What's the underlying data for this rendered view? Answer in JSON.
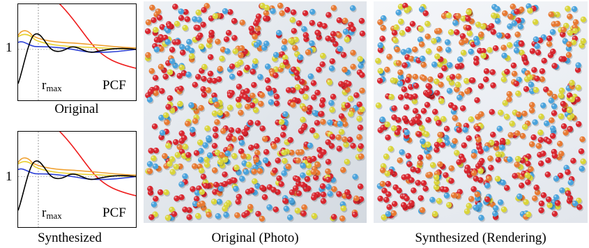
{
  "figure": {
    "plot_top": {
      "tick_one": "1",
      "rmax_main": "r",
      "rmax_sub": "max",
      "pcf_label": "PCF",
      "caption": "Original"
    },
    "plot_bottom": {
      "tick_one": "1",
      "rmax_main": "r",
      "rmax_sub": "max",
      "pcf_label": "PCF",
      "caption": "Synthesized"
    },
    "photo_original": {
      "caption": "Original (Photo)"
    },
    "photo_synth": {
      "caption": "Synthesized (Rendering)"
    },
    "colors": {
      "red": "#d8262f",
      "orange": "#e77a33",
      "yellow": "#d9d43a",
      "blue": "#4aa3dc",
      "black": "#000000",
      "plot_blue": "#2b3fd6",
      "plot_orange": "#f0a030",
      "plot_yellow": "#e8d030",
      "plot_red": "#ee1c1c"
    }
  }
}
